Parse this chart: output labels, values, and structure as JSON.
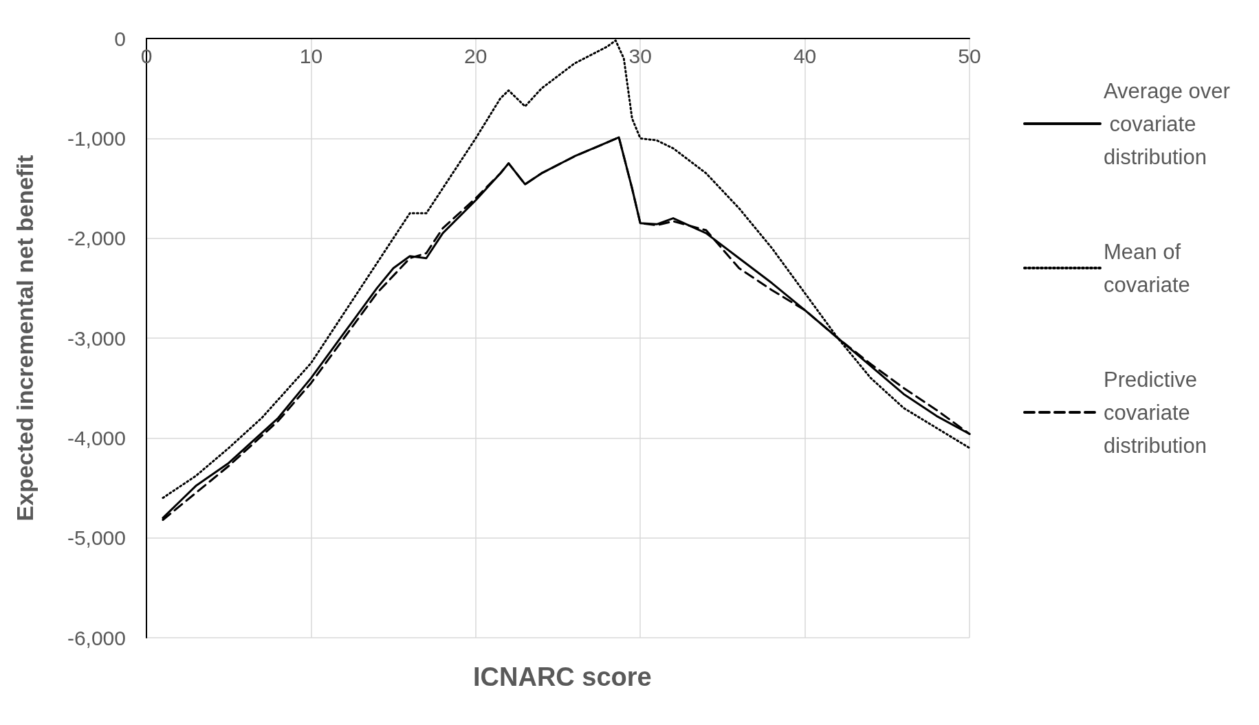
{
  "chart_data": {
    "type": "line",
    "xlabel": "ICNARC score",
    "ylabel": "Expected incremental net benefit",
    "xlim": [
      0,
      50
    ],
    "xticks": [
      0,
      10,
      20,
      30,
      40,
      50
    ],
    "ylim": [
      -6000,
      0
    ],
    "yticks": [
      {
        "value": -6000,
        "label": "-6,000"
      },
      {
        "value": -5000,
        "label": "-5,000"
      },
      {
        "value": -4000,
        "label": "-4,000"
      },
      {
        "value": -3000,
        "label": "-3,000"
      },
      {
        "value": -2000,
        "label": "-2,000"
      },
      {
        "value": -1000,
        "label": "-1,000"
      },
      0
    ],
    "grid": true,
    "legend": "right",
    "marker": "none",
    "series": [
      {
        "name": "Average over covariate distribution",
        "color": "#000000",
        "line_style": "solid",
        "x": [
          1,
          3,
          5,
          7,
          8,
          10,
          12,
          14,
          15,
          16,
          17,
          18,
          20,
          21.5,
          22,
          23,
          24,
          26,
          28,
          28.7,
          29.5,
          30,
          31,
          32,
          34,
          36,
          38,
          40,
          42,
          44,
          46,
          48,
          50
        ],
        "values": [
          -4800,
          -4480,
          -4250,
          -3950,
          -3800,
          -3400,
          -2950,
          -2500,
          -2300,
          -2180,
          -2200,
          -1950,
          -1620,
          -1350,
          -1250,
          -1460,
          -1350,
          -1180,
          -1040,
          -990,
          -1500,
          -1850,
          -1860,
          -1800,
          -1950,
          -2200,
          -2450,
          -2720,
          -3000,
          -3280,
          -3560,
          -3780,
          -3960
        ]
      },
      {
        "name": "Mean of covariate",
        "color": "#000000",
        "line_style": "dotted",
        "x": [
          1,
          3,
          5,
          7,
          10,
          12,
          14,
          16,
          17,
          18,
          20,
          21.5,
          22,
          23,
          24,
          26,
          28,
          28.5,
          29,
          29.5,
          30,
          31,
          32,
          34,
          36,
          38,
          40,
          42,
          44,
          46,
          48,
          50
        ],
        "values": [
          -4600,
          -4380,
          -4100,
          -3800,
          -3250,
          -2750,
          -2250,
          -1750,
          -1750,
          -1500,
          -1000,
          -600,
          -520,
          -680,
          -500,
          -250,
          -80,
          -20,
          -200,
          -800,
          -1000,
          -1020,
          -1100,
          -1350,
          -1700,
          -2100,
          -2550,
          -3000,
          -3400,
          -3700,
          -3900,
          -4100
        ]
      },
      {
        "name": "Predictive covariate distribution",
        "color": "#000000",
        "line_style": "dashed",
        "x": [
          1,
          5,
          8,
          10,
          12,
          14,
          16,
          17,
          18,
          20,
          21.5,
          22,
          23,
          24,
          26,
          28,
          28.7,
          29.5,
          30,
          31,
          32,
          34,
          36,
          38,
          40,
          42,
          44,
          46,
          48,
          50
        ],
        "values": [
          -4820,
          -4280,
          -3830,
          -3450,
          -3000,
          -2550,
          -2200,
          -2150,
          -1900,
          -1600,
          -1350,
          -1250,
          -1460,
          -1350,
          -1180,
          -1040,
          -990,
          -1500,
          -1850,
          -1870,
          -1830,
          -1920,
          -2300,
          -2520,
          -2720,
          -3000,
          -3260,
          -3500,
          -3720,
          -3960
        ]
      }
    ]
  }
}
